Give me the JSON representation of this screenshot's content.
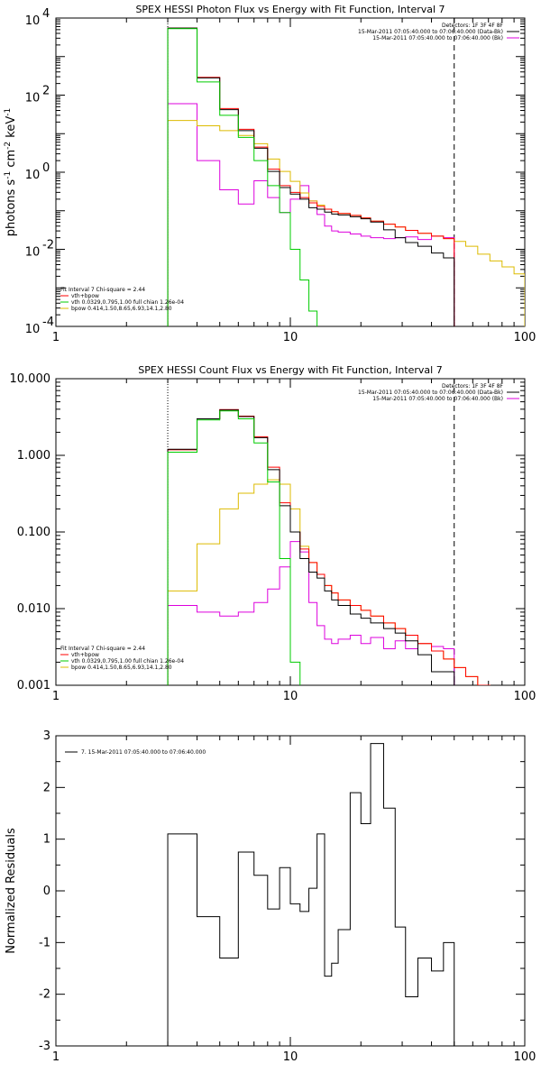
{
  "colors": {
    "data": "#000000",
    "total": "#ff0000",
    "vth": "#00cc00",
    "bpow": "#ddbb00",
    "bk": "#dd00dd"
  },
  "chart_data": [
    {
      "id": "photon",
      "type": "line",
      "step": true,
      "xscale": "log",
      "yscale": "log",
      "xlim": [
        1,
        100
      ],
      "ylim": [
        0.0001,
        10000
      ],
      "title": "SPEX HESSI Photon Flux vs Energy with Fit Function, Interval 7",
      "xlabel": "",
      "ylabel": "photons s⁻¹ cm⁻² keV⁻¹",
      "ylabel_parts": [
        "photons s",
        "-1",
        " cm",
        "-2",
        " keV",
        "-1"
      ],
      "xticks": [
        {
          "v": 1,
          "label": "1"
        },
        {
          "v": 10,
          "label": "10"
        },
        {
          "v": 100,
          "label": "100"
        }
      ],
      "yticks": [
        {
          "v": 0.0001,
          "base": "10",
          "exp": "-4"
        },
        {
          "v": 0.01,
          "base": "10",
          "exp": "-2"
        },
        {
          "v": 1,
          "base": "10",
          "exp": "0"
        },
        {
          "v": 100,
          "base": "10",
          "exp": "2"
        },
        {
          "v": 10000,
          "base": "10",
          "exp": "4"
        }
      ],
      "vlines": [
        {
          "x": 3,
          "style": "dotted"
        },
        {
          "x": 50,
          "style": "dashed"
        }
      ],
      "legend_top": {
        "position": "top-right",
        "lines": [
          {
            "text": "Detectors: 1F 3F 4F 8F",
            "color": ""
          },
          {
            "text": "15-Mar-2011 07:05:40.000 to 07:06:40.000 (Data-Bk)",
            "color": "data"
          },
          {
            "text": "15-Mar-2011 07:05:40.000 to 07:06:40.000 (Bk)",
            "color": "bk"
          }
        ]
      },
      "legend_bottom": {
        "position": "bottom-left",
        "lines": [
          {
            "text": "Fit Interval  7    Chi-square = 2.44",
            "color": ""
          },
          {
            "text": "vth+bpow",
            "color": "total"
          },
          {
            "text": "vth 0.0329,0.795,1.00  full chian 1.26e-04",
            "color": "vth"
          },
          {
            "text": "bpow 0.414,1.50,8.65,6.93,14.1,2.80",
            "color": "bpow"
          }
        ]
      },
      "edges": [
        3,
        3.5,
        4,
        5,
        6,
        7,
        8,
        9,
        10,
        11,
        12,
        13,
        14,
        15,
        16,
        18,
        20,
        22,
        25,
        28,
        31,
        35,
        40,
        45,
        50,
        56,
        63,
        71,
        80,
        90,
        100
      ],
      "series": [
        {
          "key": "data",
          "values": [
            5500,
            5500,
            280,
            42,
            12,
            4.2,
            1.05,
            0.4,
            0.27,
            0.2,
            0.12,
            0.11,
            0.092,
            0.082,
            0.078,
            0.07,
            0.062,
            0.051,
            0.032,
            0.02,
            0.015,
            0.012,
            0.008,
            0.006
          ]
        },
        {
          "key": "total",
          "values": [
            5500,
            5500,
            290,
            45,
            13,
            4.5,
            1.2,
            0.45,
            0.3,
            0.22,
            0.16,
            0.13,
            0.11,
            0.095,
            0.085,
            0.076,
            0.065,
            0.054,
            0.045,
            0.038,
            0.031,
            0.026,
            0.022,
            0.019
          ]
        },
        {
          "key": "vth",
          "values": [
            5300,
            5300,
            220,
            30,
            8,
            2,
            0.45,
            0.09,
            0.01,
            0.0016,
            0.00025
          ]
        },
        {
          "key": "bpow",
          "values": [
            22,
            22,
            16,
            12,
            9,
            5.5,
            2.2,
            1.05,
            0.58,
            0.29,
            0.18,
            0.14,
            0.11,
            0.095,
            0.085,
            0.076,
            0.065,
            0.054,
            0.045,
            0.038,
            0.031,
            0.026,
            0.022,
            0.019,
            0.016,
            0.012,
            0.0075,
            0.005,
            0.0035,
            0.0023
          ]
        },
        {
          "key": "bk",
          "values": [
            60,
            60,
            2,
            0.35,
            0.15,
            0.6,
            0.22,
            0.09,
            0.2,
            0.45,
            0.18,
            0.08,
            0.04,
            0.03,
            0.028,
            0.025,
            0.022,
            0.02,
            0.019,
            0.02,
            0.021,
            0.018,
            0.022,
            0.02
          ]
        }
      ]
    },
    {
      "id": "count",
      "type": "line",
      "step": true,
      "xscale": "log",
      "yscale": "log",
      "xlim": [
        1,
        100
      ],
      "ylim": [
        0.001,
        10
      ],
      "title": "SPEX HESSI Count Flux vs Energy with Fit Function, Interval 7",
      "xlabel": "",
      "ylabel": "",
      "xticks": [
        {
          "v": 1,
          "label": "1"
        },
        {
          "v": 10,
          "label": "10"
        },
        {
          "v": 100,
          "label": "100"
        }
      ],
      "yticks": [
        {
          "v": 0.001,
          "label": "0.001"
        },
        {
          "v": 0.01,
          "label": "0.010"
        },
        {
          "v": 0.1,
          "label": "0.100"
        },
        {
          "v": 1,
          "label": "1.000"
        },
        {
          "v": 10,
          "label": "10.000"
        }
      ],
      "vlines": [
        {
          "x": 3,
          "style": "dotted"
        },
        {
          "x": 50,
          "style": "dashed"
        }
      ],
      "legend_top": {
        "position": "top-right",
        "lines": [
          {
            "text": "Detectors: 1F 3F 4F 8F",
            "color": ""
          },
          {
            "text": "15-Mar-2011 07:05:40.000 to 07:06:40.000 (Data-Bk)",
            "color": "data"
          },
          {
            "text": "15-Mar-2011 07:05:40.000 to 07:06:40.000 (Bk)",
            "color": "bk"
          }
        ]
      },
      "legend_bottom": {
        "position": "bottom-left",
        "lines": [
          {
            "text": "Fit Interval  7    Chi-square = 2.44",
            "color": ""
          },
          {
            "text": "vth+bpow",
            "color": "total"
          },
          {
            "text": "vth 0.0329,0.795,1.00  full chian 1.26e-04",
            "color": "vth"
          },
          {
            "text": "bpow 0.414,1.50,8.65,6.93,14.1,2.80",
            "color": "bpow"
          }
        ]
      },
      "edges": [
        3,
        4,
        5,
        6,
        7,
        8,
        9,
        10,
        11,
        12,
        13,
        14,
        15,
        16,
        18,
        20,
        22,
        25,
        28,
        31,
        35,
        40,
        45,
        50,
        56,
        63,
        71,
        80
      ],
      "series": [
        {
          "key": "data",
          "values": [
            1.2,
            3.0,
            3.9,
            3.2,
            1.7,
            0.65,
            0.22,
            0.1,
            0.045,
            0.03,
            0.025,
            0.017,
            0.013,
            0.011,
            0.0085,
            0.0075,
            0.0065,
            0.0055,
            0.0048,
            0.0038,
            0.0025,
            0.0015,
            0.0015
          ]
        },
        {
          "key": "total",
          "values": [
            1.18,
            3.0,
            3.95,
            3.25,
            1.75,
            0.7,
            0.24,
            0.1,
            0.06,
            0.04,
            0.028,
            0.02,
            0.016,
            0.013,
            0.011,
            0.0095,
            0.008,
            0.0065,
            0.0055,
            0.0045,
            0.0035,
            0.0028,
            0.0022,
            0.0017,
            0.0013,
            0.001
          ]
        },
        {
          "key": "vth",
          "values": [
            1.1,
            2.9,
            3.8,
            3.0,
            1.45,
            0.45,
            0.045,
            0.002,
            0.0005
          ]
        },
        {
          "key": "bpow",
          "values": [
            0.017,
            0.07,
            0.2,
            0.32,
            0.42,
            0.48,
            0.42,
            0.2,
            0.065,
            0.04,
            0.028,
            0.02,
            0.016,
            0.013,
            0.011,
            0.0095,
            0.008,
            0.0065,
            0.0055,
            0.0045,
            0.0035,
            0.0028,
            0.0022,
            0.0017,
            0.0013,
            0.001,
            0.0008
          ]
        },
        {
          "key": "bk",
          "values": [
            0.011,
            0.009,
            0.008,
            0.009,
            0.012,
            0.018,
            0.035,
            0.075,
            0.055,
            0.012,
            0.006,
            0.004,
            0.0035,
            0.004,
            0.0045,
            0.0035,
            0.0042,
            0.003,
            0.0038,
            0.003,
            0.0035,
            0.0032,
            0.003
          ]
        }
      ]
    },
    {
      "id": "resid",
      "type": "line",
      "step": true,
      "xscale": "log",
      "yscale": "linear",
      "xlim": [
        1,
        100
      ],
      "ylim": [
        -3,
        3
      ],
      "title": "",
      "xlabel": "",
      "ylabel": "Normalized Residuals",
      "xticks": [
        {
          "v": 1,
          "label": "1"
        },
        {
          "v": 10,
          "label": "10"
        },
        {
          "v": 100,
          "label": "100"
        }
      ],
      "yticks": [
        {
          "v": -3,
          "label": "-3"
        },
        {
          "v": -2,
          "label": "-2"
        },
        {
          "v": -1,
          "label": "-1"
        },
        {
          "v": 0,
          "label": "0"
        },
        {
          "v": 1,
          "label": "1"
        },
        {
          "v": 2,
          "label": "2"
        },
        {
          "v": 3,
          "label": "3"
        }
      ],
      "vlines": [],
      "legend_top": {
        "position": "top-left",
        "lines": [
          {
            "text": "7. 15-Mar-2011 07:05:40.000 to 07:06:40.000",
            "color": "data"
          }
        ]
      },
      "legend_bottom": {
        "position": "bottom-left",
        "lines": []
      },
      "edges": [
        3,
        4,
        5,
        6,
        7,
        8,
        9,
        10,
        11,
        12,
        13,
        14,
        15,
        16,
        18,
        20,
        22,
        25,
        28,
        31,
        35,
        40,
        45,
        50
      ],
      "series": [
        {
          "key": "data",
          "values": [
            1.1,
            -0.5,
            -1.3,
            0.75,
            0.3,
            -0.35,
            0.45,
            -0.25,
            -0.4,
            0.05,
            1.1,
            -1.65,
            -1.4,
            -0.75,
            1.9,
            1.3,
            2.85,
            1.6,
            -0.7,
            -2.05,
            -1.3,
            -1.55,
            -1.0
          ],
          "drop_to_min": true
        }
      ]
    }
  ]
}
